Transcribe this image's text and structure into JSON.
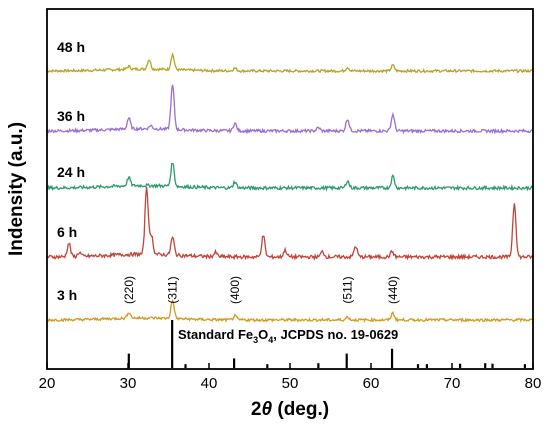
{
  "chart_data": {
    "type": "line",
    "xlabel_prefix": "2",
    "xlabel_symbol": "θ",
    "xlabel_suffix": " (deg.)",
    "ylabel": "Indensity (a.u.)",
    "xlim": [
      20,
      80
    ],
    "x_ticks": [
      "20",
      "30",
      "40",
      "50",
      "60",
      "70",
      "80"
    ],
    "grid": false,
    "colors": {
      "48 h": "#b8a320",
      "36 h": "#9a6fd0",
      "24 h": "#2e9a6a",
      "6 h": "#c0443a",
      "3 h": "#d49a1e"
    },
    "series": [
      {
        "name": "48 h",
        "peaks": [
          [
            30.1,
            3
          ],
          [
            32.6,
            10
          ],
          [
            35.5,
            16
          ],
          [
            43.2,
            3
          ],
          [
            57.1,
            4
          ],
          [
            62.7,
            6
          ]
        ],
        "baseline_level": 0.05
      },
      {
        "name": "36 h",
        "peaks": [
          [
            30.1,
            10
          ],
          [
            32.8,
            3
          ],
          [
            35.5,
            40
          ],
          [
            43.2,
            7
          ],
          [
            53.5,
            3
          ],
          [
            57.1,
            11
          ],
          [
            62.7,
            15
          ]
        ],
        "baseline_level": 0.05
      },
      {
        "name": "24 h",
        "peaks": [
          [
            30.1,
            7
          ],
          [
            35.5,
            20
          ],
          [
            43.2,
            5
          ],
          [
            57.1,
            6
          ],
          [
            62.7,
            10
          ]
        ],
        "baseline_level": 0.05
      },
      {
        "name": "6 h",
        "peaks": [
          [
            22.7,
            10
          ],
          [
            24,
            3
          ],
          [
            32.3,
            50
          ],
          [
            32.9,
            14
          ],
          [
            35.5,
            13
          ],
          [
            40.8,
            3
          ],
          [
            46.7,
            16
          ],
          [
            49.4,
            5
          ],
          [
            54.0,
            4
          ],
          [
            58.1,
            8
          ],
          [
            62.6,
            4
          ],
          [
            77.7,
            40
          ]
        ],
        "baseline_level": 0.05
      },
      {
        "name": "3 h",
        "peaks": [
          [
            30.1,
            6
          ],
          [
            35.5,
            18
          ],
          [
            43.2,
            4
          ],
          [
            57.1,
            3
          ],
          [
            62.7,
            7
          ]
        ],
        "baseline_level": 0.05
      }
    ],
    "hkl_annotations": [
      {
        "label": "(220)",
        "x": 30.1
      },
      {
        "label": "(311)",
        "x": 35.5
      },
      {
        "label": "(400)",
        "x": 43.2
      },
      {
        "label": "(511)",
        "x": 57.1
      },
      {
        "label": "(440)",
        "x": 62.7
      }
    ],
    "reference": {
      "label_prefix": "Standard Fe",
      "label_sub1": "3",
      "label_mid": "O",
      "label_sub2": "4",
      "label_suffix": ", JCPDS no. 19-0629",
      "lines": [
        {
          "x": 30.1,
          "intensity": 30
        },
        {
          "x": 35.45,
          "intensity": 100
        },
        {
          "x": 37.1,
          "intensity": 8
        },
        {
          "x": 43.1,
          "intensity": 20
        },
        {
          "x": 47.2,
          "intensity": 8
        },
        {
          "x": 53.5,
          "intensity": 10
        },
        {
          "x": 57.0,
          "intensity": 30
        },
        {
          "x": 62.6,
          "intensity": 40
        },
        {
          "x": 65.8,
          "intensity": 8
        },
        {
          "x": 66.9,
          "intensity": 8
        },
        {
          "x": 71.0,
          "intensity": 9
        },
        {
          "x": 74.1,
          "intensity": 10
        },
        {
          "x": 75.0,
          "intensity": 9
        },
        {
          "x": 79.0,
          "intensity": 8
        }
      ]
    }
  }
}
